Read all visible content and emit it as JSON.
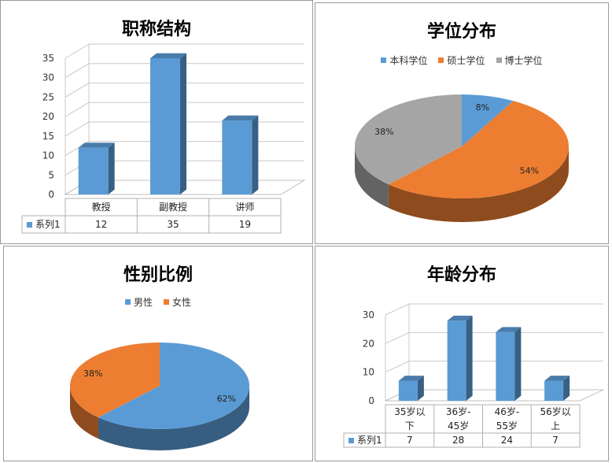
{
  "chart_data": [
    {
      "type": "bar",
      "title": "职称结构",
      "categories": [
        "教授",
        "副教授",
        "讲师"
      ],
      "series": [
        {
          "name": "系列1",
          "values": [
            12,
            35,
            19
          ]
        }
      ],
      "yticks": [
        "0",
        "5",
        "10",
        "15",
        "20",
        "25",
        "30",
        "35"
      ],
      "ylim": [
        0,
        35
      ],
      "grid": true,
      "data_table": true,
      "color": "#5b9bd5"
    },
    {
      "type": "pie",
      "title": "学位分布",
      "labels": [
        "本科学位",
        "硕士学位",
        "博士学位"
      ],
      "values": [
        8,
        54,
        38
      ],
      "value_labels": [
        "8%",
        "54%",
        "38%"
      ],
      "colors": [
        "#5b9bd5",
        "#ed7d31",
        "#a5a5a5"
      ],
      "legend": "top"
    },
    {
      "type": "pie",
      "title": "性别比例",
      "labels": [
        "男性",
        "女性"
      ],
      "values": [
        62,
        38
      ],
      "value_labels": [
        "62%",
        "38%"
      ],
      "colors": [
        "#5b9bd5",
        "#ed7d31"
      ],
      "legend": "top"
    },
    {
      "type": "bar",
      "title": "年龄分布",
      "categories": [
        [
          "35岁以",
          "下"
        ],
        [
          "36岁-",
          "45岁"
        ],
        [
          "46岁-",
          "55岁"
        ],
        [
          "56岁以",
          "上"
        ]
      ],
      "series": [
        {
          "name": "系列1",
          "values": [
            7,
            28,
            24,
            7
          ]
        }
      ],
      "yticks": [
        "0",
        "10",
        "20",
        "30"
      ],
      "ylim": [
        0,
        30
      ],
      "grid": true,
      "data_table": true,
      "color": "#5b9bd5"
    }
  ]
}
